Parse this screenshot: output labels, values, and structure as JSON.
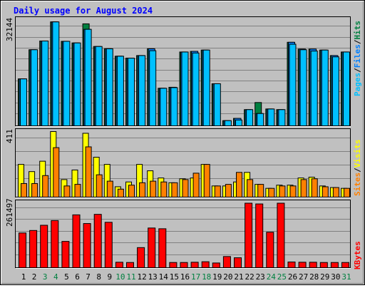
{
  "title": "Daily usage for August 2024",
  "colors": {
    "background": "#c0c0c0",
    "title": "#0000ff",
    "hits": "#008040",
    "files": "#0080ff",
    "pages": "#00c0ff",
    "visits": "#ff8000",
    "sites": "#ffff00",
    "kbytes": "#ff0000",
    "weekend_day": "#008040",
    "weekday": "#000000"
  },
  "labels": {
    "hits": "Hits",
    "files": "Files",
    "pages": "Pages",
    "sep": "/",
    "visits": "Visits",
    "sites": "Sites",
    "kbytes": "KBytes"
  },
  "chart_data": [
    {
      "type": "bar",
      "name": "hits-files-pages",
      "ymax_label": "32144",
      "ylim": [
        0,
        32144
      ],
      "categories": [
        "1",
        "2",
        "3",
        "4",
        "5",
        "6",
        "7",
        "8",
        "9",
        "10",
        "11",
        "12",
        "13",
        "14",
        "15",
        "16",
        "17",
        "18",
        "19",
        "20",
        "21",
        "22",
        "23",
        "24",
        "25",
        "26",
        "27",
        "28",
        "29",
        "30",
        "31"
      ],
      "weekend_days": [
        "3",
        "4",
        "10",
        "11",
        "17",
        "18",
        "24",
        "25",
        "31"
      ],
      "series": [
        {
          "name": "Hits",
          "values": [
            14500,
            23500,
            26200,
            32100,
            26100,
            25600,
            31500,
            24500,
            23800,
            21500,
            20900,
            21700,
            23800,
            11600,
            11900,
            22800,
            23000,
            23400,
            13000,
            1600,
            2300,
            5000,
            7200,
            5200,
            5000,
            25800,
            23700,
            23700,
            23400,
            21700,
            22800
          ]
        },
        {
          "name": "Files",
          "values": [
            14500,
            23500,
            26200,
            32100,
            26100,
            25600,
            29800,
            24500,
            23800,
            21500,
            20900,
            21700,
            23800,
            11600,
            11900,
            22800,
            23000,
            23400,
            13000,
            1600,
            2300,
            5000,
            3800,
            5200,
            5000,
            25800,
            23700,
            23700,
            23400,
            21700,
            22800
          ]
        },
        {
          "name": "Pages",
          "values": [
            14500,
            23500,
            26200,
            32100,
            26100,
            25600,
            29800,
            24500,
            23800,
            21500,
            20900,
            21700,
            23200,
            11600,
            11800,
            22800,
            22500,
            23400,
            13000,
            1600,
            1800,
            5000,
            3800,
            5200,
            5000,
            25200,
            23500,
            23100,
            23400,
            21300,
            22800
          ]
        }
      ]
    },
    {
      "type": "bar",
      "name": "visits-sites",
      "ymax_label": "411",
      "ylim": [
        0,
        411
      ],
      "series": [
        {
          "name": "Sites",
          "values": [
            205,
            160,
            225,
            411,
            110,
            170,
            400,
            250,
            205,
            65,
            95,
            205,
            165,
            120,
            90,
            115,
            120,
            205,
            70,
            70,
            95,
            155,
            80,
            55,
            75,
            75,
            120,
            125,
            70,
            60,
            55
          ]
        },
        {
          "name": "Visits",
          "values": [
            85,
            85,
            135,
            310,
            70,
            80,
            315,
            140,
            100,
            50,
            75,
            90,
            100,
            95,
            90,
            110,
            150,
            205,
            70,
            80,
            155,
            110,
            80,
            55,
            70,
            70,
            110,
            115,
            65,
            60,
            55
          ]
        }
      ]
    },
    {
      "type": "bar",
      "name": "kbytes",
      "ymax_label": "261497",
      "ylim": [
        0,
        261497
      ],
      "series": [
        {
          "name": "KBytes",
          "values": [
            140000,
            150000,
            171000,
            190000,
            106000,
            213000,
            178000,
            215000,
            183000,
            22000,
            21000,
            81000,
            160000,
            157000,
            21000,
            21000,
            22000,
            24000,
            19000,
            45000,
            40000,
            260000,
            257000,
            143000,
            260000,
            23000,
            22000,
            22000,
            21000,
            21000,
            21000
          ]
        }
      ]
    }
  ]
}
